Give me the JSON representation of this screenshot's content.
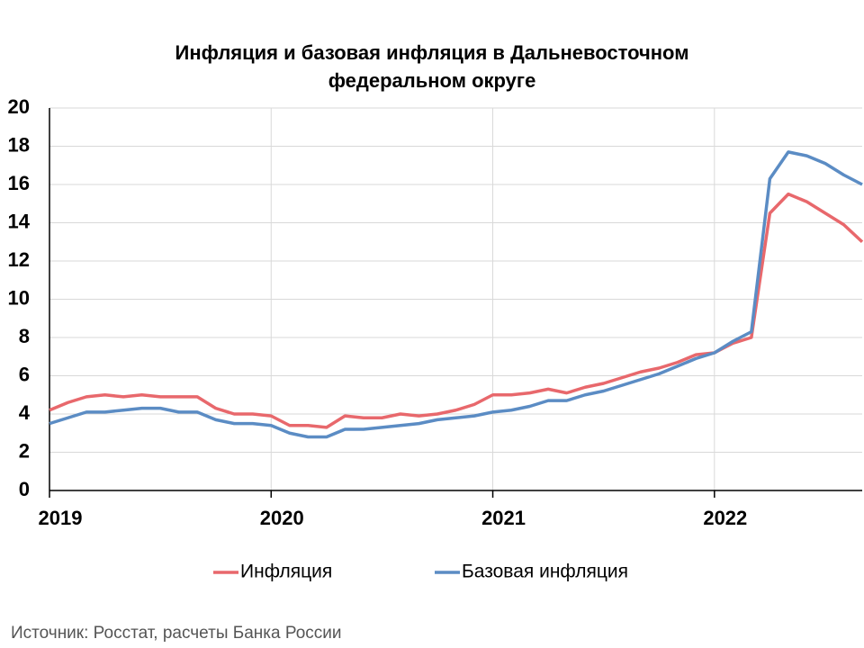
{
  "chart_data": {
    "type": "line",
    "title": "Инфляция и базовая инфляция в Дальневосточном федеральном округе",
    "source": "Источник: Росстат, расчеты Банка России",
    "categories": [
      "2019",
      null,
      null,
      null,
      null,
      null,
      null,
      null,
      null,
      null,
      null,
      null,
      "2020",
      null,
      null,
      null,
      null,
      null,
      null,
      null,
      null,
      null,
      null,
      null,
      "2021",
      null,
      null,
      null,
      null,
      null,
      null,
      null,
      null,
      null,
      null,
      null,
      "2022",
      null,
      null,
      null,
      null,
      null,
      null,
      null,
      null
    ],
    "series": [
      {
        "name": "Инфляция",
        "color": "#e8686c",
        "values": [
          4.2,
          4.6,
          4.9,
          5.0,
          4.9,
          5.0,
          4.9,
          4.9,
          4.9,
          4.3,
          4.0,
          4.0,
          3.9,
          3.4,
          3.4,
          3.3,
          3.9,
          3.8,
          3.8,
          4.0,
          3.9,
          4.0,
          4.2,
          4.5,
          5.0,
          5.0,
          5.1,
          5.3,
          5.1,
          5.4,
          5.6,
          5.9,
          6.2,
          6.4,
          6.7,
          7.1,
          7.2,
          7.7,
          8.0,
          14.5,
          15.5,
          15.1,
          14.5,
          13.9,
          13.0
        ]
      },
      {
        "name": "Базовая инфляция",
        "color": "#5b8cc4",
        "values": [
          3.5,
          3.8,
          4.1,
          4.1,
          4.2,
          4.3,
          4.3,
          4.1,
          4.1,
          3.7,
          3.5,
          3.5,
          3.4,
          3.0,
          2.8,
          2.8,
          3.2,
          3.2,
          3.3,
          3.4,
          3.5,
          3.7,
          3.8,
          3.9,
          4.1,
          4.2,
          4.4,
          4.7,
          4.7,
          5.0,
          5.2,
          5.5,
          5.8,
          6.1,
          6.5,
          6.9,
          7.2,
          7.8,
          8.3,
          16.3,
          17.7,
          17.5,
          17.1,
          16.5,
          16.0
        ]
      }
    ],
    "ylim": [
      0,
      20
    ],
    "yticks": [
      0,
      2,
      4,
      6,
      8,
      10,
      12,
      14,
      16,
      18,
      20
    ],
    "grid": true,
    "legend": "bottom"
  }
}
